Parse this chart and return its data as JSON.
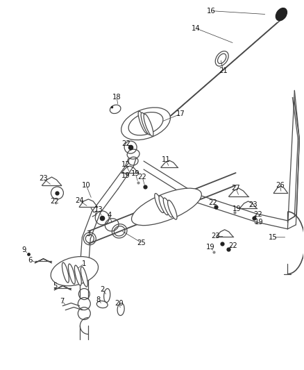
{
  "bg_color": "#ffffff",
  "fig_width": 4.38,
  "fig_height": 5.33,
  "dpi": 100,
  "label_fontsize": 7.2,
  "label_color": "#111111",
  "part_color": "#4a4a4a",
  "part_lw": 0.9,
  "labels": [
    [
      "16",
      305,
      15,
      385,
      20
    ],
    [
      "14",
      282,
      40,
      338,
      62
    ],
    [
      "21",
      322,
      102,
      318,
      84
    ],
    [
      "18",
      168,
      140,
      170,
      152
    ],
    [
      "22",
      182,
      207,
      190,
      212
    ],
    [
      "17",
      260,
      164,
      228,
      177
    ],
    [
      "10",
      124,
      267,
      132,
      287
    ],
    [
      "23",
      62,
      257,
      74,
      267
    ],
    [
      "22",
      78,
      290,
      82,
      297
    ],
    [
      "27",
      340,
      271,
      345,
      283
    ],
    [
      "26",
      404,
      267,
      406,
      278
    ],
    [
      "23",
      365,
      295,
      358,
      300
    ],
    [
      "22",
      307,
      292,
      311,
      298
    ],
    [
      "19",
      342,
      301,
      339,
      306
    ],
    [
      "22",
      372,
      309,
      367,
      314
    ],
    [
      "19",
      374,
      320,
      368,
      320
    ],
    [
      "15",
      394,
      342,
      414,
      342
    ],
    [
      "11",
      239,
      230,
      244,
      241
    ],
    [
      "19",
      195,
      250,
      199,
      263
    ],
    [
      "12",
      181,
      237,
      187,
      249
    ],
    [
      "22",
      205,
      255,
      209,
      269
    ],
    [
      "19",
      181,
      253,
      183,
      251
    ],
    [
      "24",
      114,
      289,
      127,
      298
    ],
    [
      "13",
      142,
      302,
      147,
      313
    ],
    [
      "4",
      157,
      310,
      162,
      323
    ],
    [
      "25",
      204,
      350,
      174,
      332
    ],
    [
      "23",
      311,
      340,
      324,
      341
    ],
    [
      "19",
      304,
      356,
      308,
      363
    ],
    [
      "22",
      336,
      354,
      329,
      359
    ],
    [
      "1",
      121,
      380,
      106,
      391
    ],
    [
      "3",
      127,
      337,
      129,
      343
    ],
    [
      "2",
      147,
      417,
      154,
      426
    ],
    [
      "9",
      34,
      360,
      40,
      366
    ],
    [
      "6",
      43,
      375,
      54,
      379
    ],
    [
      "5",
      79,
      412,
      81,
      418
    ],
    [
      "7",
      89,
      434,
      95,
      441
    ],
    [
      "8",
      141,
      432,
      147,
      439
    ],
    [
      "20",
      171,
      437,
      174,
      446
    ]
  ]
}
